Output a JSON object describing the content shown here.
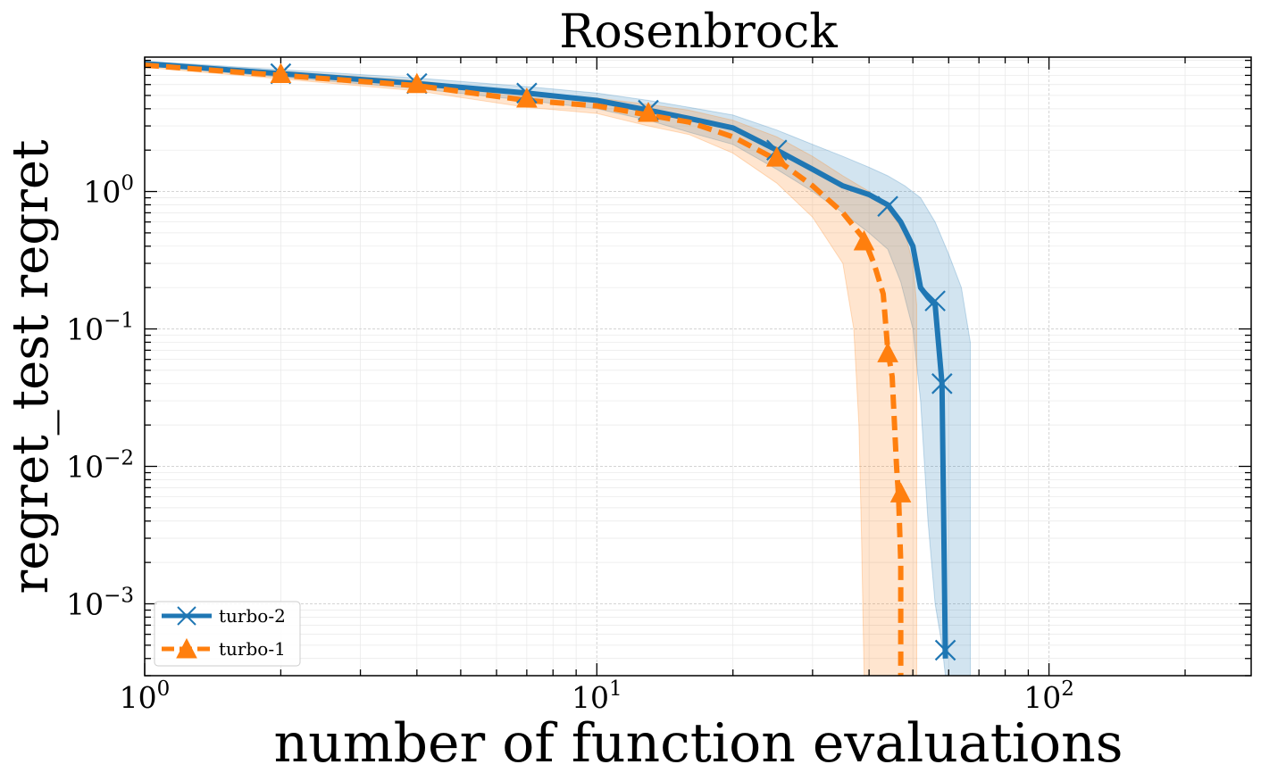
{
  "chart_data": {
    "type": "line",
    "title": "Rosenbrock",
    "xlabel": "number of function evaluations",
    "ylabel": "regret_test regret",
    "x_scale": "log",
    "y_scale": "log",
    "xlim": [
      1,
      280
    ],
    "ylim": [
      0.0003,
      9.5
    ],
    "grid": true,
    "legend_position": "lower-left",
    "x_ticks": [
      {
        "value": 1,
        "base": "10",
        "exp": "0"
      },
      {
        "value": 10,
        "base": "10",
        "exp": "1"
      },
      {
        "value": 100,
        "base": "10",
        "exp": "2"
      }
    ],
    "y_ticks": [
      {
        "value": 1,
        "base": "10",
        "exp": "0"
      },
      {
        "value": 0.1,
        "base": "10",
        "exp": "−1"
      },
      {
        "value": 0.01,
        "base": "10",
        "exp": "−2"
      },
      {
        "value": 0.001,
        "base": "10",
        "exp": "−3"
      }
    ],
    "series": [
      {
        "name": "turbo-2",
        "color": "#1f77b4",
        "style": "solid",
        "marker": "x",
        "x": [
          1,
          2,
          4,
          7,
          10,
          13,
          16,
          20,
          25,
          30,
          35,
          40,
          44,
          47,
          50,
          52,
          54,
          56,
          58,
          59
        ],
        "y": [
          8.5,
          7.2,
          6.1,
          5.2,
          4.6,
          3.9,
          3.4,
          2.9,
          2.0,
          1.45,
          1.1,
          0.95,
          0.8,
          0.6,
          0.4,
          0.2,
          0.17,
          0.15,
          0.04,
          0.0004
        ],
        "lower": [
          8.2,
          6.8,
          5.6,
          4.6,
          4.0,
          3.3,
          2.7,
          2.2,
          1.45,
          1.0,
          0.7,
          0.5,
          0.38,
          0.22,
          0.1,
          0.03,
          0.004,
          0.001,
          0.0005,
          0.0003
        ],
        "upper": [
          8.9,
          7.7,
          6.7,
          5.8,
          5.2,
          4.6,
          4.1,
          3.6,
          2.8,
          2.2,
          1.8,
          1.5,
          1.3,
          1.1,
          0.9,
          0.6,
          0.35,
          0.2,
          0.08,
          0.0003
        ],
        "upper_x": [
          1,
          2,
          4,
          7,
          10,
          13,
          16,
          20,
          25,
          30,
          35,
          40,
          44,
          48,
          52,
          56,
          60,
          64,
          67,
          67
        ],
        "markers_x": [
          2,
          4,
          7,
          13,
          25,
          44,
          56,
          58,
          59
        ],
        "markers_y": [
          7.2,
          6.1,
          5.2,
          3.9,
          2.0,
          0.78,
          0.16,
          0.04,
          0.00046
        ]
      },
      {
        "name": "turbo-1",
        "color": "#ff7f0e",
        "style": "dashed",
        "marker": "^",
        "x": [
          1,
          2,
          4,
          7,
          10,
          13,
          16,
          20,
          25,
          30,
          35,
          39,
          41,
          43,
          44,
          45,
          46,
          46.5,
          47,
          47
        ],
        "y": [
          8.3,
          7.0,
          5.9,
          4.6,
          4.2,
          3.6,
          3.2,
          2.5,
          1.7,
          1.1,
          0.7,
          0.45,
          0.3,
          0.18,
          0.07,
          0.045,
          0.01,
          0.006,
          0.002,
          0.0003
        ],
        "lower": [
          8.0,
          6.6,
          5.4,
          4.1,
          3.7,
          3.0,
          2.6,
          1.9,
          1.15,
          0.65,
          0.3,
          0.1,
          0.02,
          0.003,
          0.0003,
          0.0003,
          0.0003,
          0.0003,
          0.0003,
          0.0003
        ],
        "upper": [
          8.7,
          7.5,
          6.4,
          5.2,
          4.8,
          4.3,
          3.9,
          3.3,
          2.5,
          1.8,
          1.3,
          1.0,
          0.75,
          0.5,
          0.3,
          0.15,
          0.06,
          0.02,
          0.005,
          0.0003
        ],
        "lower_x": [
          1,
          2,
          4,
          7,
          10,
          13,
          16,
          20,
          25,
          30,
          35,
          37,
          38,
          38.5,
          39,
          39,
          39,
          39,
          39,
          39
        ],
        "upper_x": [
          1,
          2,
          4,
          7,
          10,
          13,
          16,
          20,
          25,
          30,
          35,
          40,
          44,
          48,
          50,
          51,
          51,
          51,
          51,
          51
        ],
        "markers_x": [
          2,
          4,
          7,
          13,
          25,
          39,
          44,
          47
        ],
        "markers_y": [
          7.1,
          6.0,
          4.7,
          3.7,
          1.75,
          0.43,
          0.066,
          0.0063
        ]
      }
    ]
  }
}
